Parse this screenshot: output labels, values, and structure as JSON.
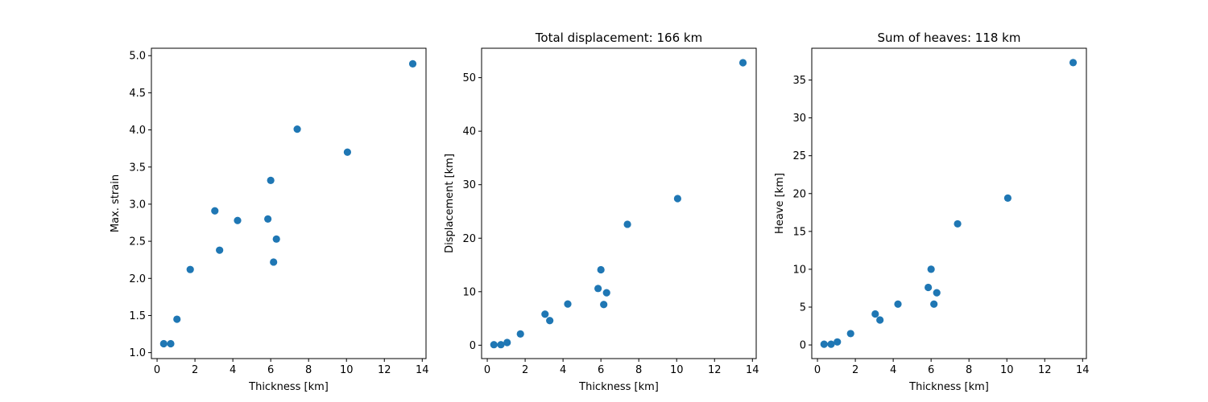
{
  "colors": {
    "marker": "#1f77b4",
    "axis": "#000000",
    "background": "#ffffff"
  },
  "chart_data": [
    {
      "type": "scatter",
      "title": "",
      "xlabel": "Thickness [km]",
      "ylabel": "Max. strain",
      "xlim": [
        -0.3,
        14.2
      ],
      "ylim": [
        0.92,
        5.1
      ],
      "xticks": [
        0,
        2,
        4,
        6,
        8,
        10,
        12,
        14
      ],
      "yticks": [
        1.0,
        1.5,
        2.0,
        2.5,
        3.0,
        3.5,
        4.0,
        4.5,
        5.0
      ],
      "xtick_labels": [
        "0",
        "2",
        "4",
        "6",
        "8",
        "10",
        "12",
        "14"
      ],
      "ytick_labels": [
        "1.0",
        "1.5",
        "2.0",
        "2.5",
        "3.0",
        "3.5",
        "4.0",
        "4.5",
        "5.0"
      ],
      "grid": false,
      "points": [
        {
          "x": 0.35,
          "y": 1.12
        },
        {
          "x": 0.72,
          "y": 1.12
        },
        {
          "x": 1.05,
          "y": 1.45
        },
        {
          "x": 1.75,
          "y": 2.12
        },
        {
          "x": 3.05,
          "y": 2.91
        },
        {
          "x": 3.3,
          "y": 2.38
        },
        {
          "x": 4.25,
          "y": 2.78
        },
        {
          "x": 5.85,
          "y": 2.8
        },
        {
          "x": 6.0,
          "y": 3.32
        },
        {
          "x": 6.15,
          "y": 2.22
        },
        {
          "x": 6.3,
          "y": 2.53
        },
        {
          "x": 7.4,
          "y": 4.01
        },
        {
          "x": 10.05,
          "y": 3.7
        },
        {
          "x": 13.5,
          "y": 4.89
        }
      ]
    },
    {
      "type": "scatter",
      "title": "Total displacement: 166 km",
      "xlabel": "Thickness [km]",
      "ylabel": "Displacement [km]",
      "xlim": [
        -0.3,
        14.2
      ],
      "ylim": [
        -2.5,
        55.5
      ],
      "xticks": [
        0,
        2,
        4,
        6,
        8,
        10,
        12,
        14
      ],
      "yticks": [
        0,
        10,
        20,
        30,
        40,
        50
      ],
      "xtick_labels": [
        "0",
        "2",
        "4",
        "6",
        "8",
        "10",
        "12",
        "14"
      ],
      "ytick_labels": [
        "0",
        "10",
        "20",
        "30",
        "40",
        "50"
      ],
      "grid": false,
      "points": [
        {
          "x": 0.35,
          "y": 0.1
        },
        {
          "x": 0.72,
          "y": 0.1
        },
        {
          "x": 1.05,
          "y": 0.5
        },
        {
          "x": 1.75,
          "y": 2.1
        },
        {
          "x": 3.05,
          "y": 5.8
        },
        {
          "x": 3.3,
          "y": 4.6
        },
        {
          "x": 4.25,
          "y": 7.7
        },
        {
          "x": 5.85,
          "y": 10.6
        },
        {
          "x": 6.0,
          "y": 14.1
        },
        {
          "x": 6.15,
          "y": 7.6
        },
        {
          "x": 6.3,
          "y": 9.8
        },
        {
          "x": 7.4,
          "y": 22.6
        },
        {
          "x": 10.05,
          "y": 27.4
        },
        {
          "x": 13.5,
          "y": 52.8
        }
      ]
    },
    {
      "type": "scatter",
      "title": "Sum of heaves: 118 km",
      "xlabel": "Thickness [km]",
      "ylabel": "Heave [km]",
      "xlim": [
        -0.3,
        14.2
      ],
      "ylim": [
        -1.8,
        39.2
      ],
      "xticks": [
        0,
        2,
        4,
        6,
        8,
        10,
        12,
        14
      ],
      "yticks": [
        0,
        5,
        10,
        15,
        20,
        25,
        30,
        35
      ],
      "xtick_labels": [
        "0",
        "2",
        "4",
        "6",
        "8",
        "10",
        "12",
        "14"
      ],
      "ytick_labels": [
        "0",
        "5",
        "10",
        "15",
        "20",
        "25",
        "30",
        "35"
      ],
      "grid": false,
      "points": [
        {
          "x": 0.35,
          "y": 0.1
        },
        {
          "x": 0.72,
          "y": 0.1
        },
        {
          "x": 1.05,
          "y": 0.4
        },
        {
          "x": 1.75,
          "y": 1.5
        },
        {
          "x": 3.05,
          "y": 4.1
        },
        {
          "x": 3.3,
          "y": 3.3
        },
        {
          "x": 4.25,
          "y": 5.4
        },
        {
          "x": 5.85,
          "y": 7.6
        },
        {
          "x": 6.0,
          "y": 10.0
        },
        {
          "x": 6.15,
          "y": 5.4
        },
        {
          "x": 6.3,
          "y": 6.9
        },
        {
          "x": 7.4,
          "y": 16.0
        },
        {
          "x": 10.05,
          "y": 19.4
        },
        {
          "x": 13.5,
          "y": 37.3
        }
      ]
    }
  ]
}
